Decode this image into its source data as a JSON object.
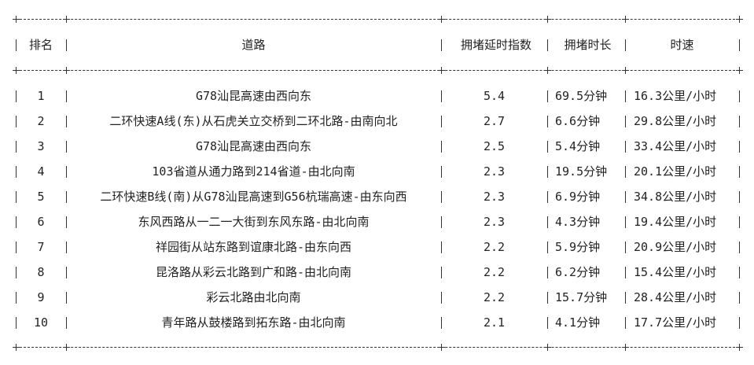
{
  "table": {
    "headers": [
      "排名",
      "道路",
      "拥堵延时指数",
      "拥堵时长",
      "时速"
    ],
    "rows": [
      [
        "1",
        "G78汕昆高速由西向东",
        "5.4",
        "69.5分钟",
        "16.3公里/小时"
      ],
      [
        "2",
        "二环快速A线(东)从石虎关立交桥到二环北路-由南向北",
        "2.7",
        "6.6分钟",
        "29.8公里/小时"
      ],
      [
        "3",
        "G78汕昆高速由西向东",
        "2.5",
        "5.4分钟",
        "33.4公里/小时"
      ],
      [
        "4",
        "103省道从通力路到214省道-由北向南",
        "2.3",
        "19.5分钟",
        "20.1公里/小时"
      ],
      [
        "5",
        "二环快速B线(南)从G78汕昆高速到G56杭瑞高速-由东向西",
        "2.3",
        "6.9分钟",
        "34.8公里/小时"
      ],
      [
        "6",
        "东风西路从一二一大街到东风东路-由北向南",
        "2.3",
        "4.3分钟",
        "19.4公里/小时"
      ],
      [
        "7",
        "祥园街从站东路到谊康北路-由东向西",
        "2.2",
        "5.9分钟",
        "20.9公里/小时"
      ],
      [
        "8",
        "昆洛路从彩云北路到广和路-由北向南",
        "2.2",
        "6.2分钟",
        "15.4公里/小时"
      ],
      [
        "9",
        "彩云北路由北向南",
        "2.2",
        "15.7分钟",
        "28.4公里/小时"
      ],
      [
        "10",
        "青年路从鼓楼路到拓东路-由北向南",
        "2.1",
        "4.1分钟",
        "17.7公里/小时"
      ]
    ]
  }
}
